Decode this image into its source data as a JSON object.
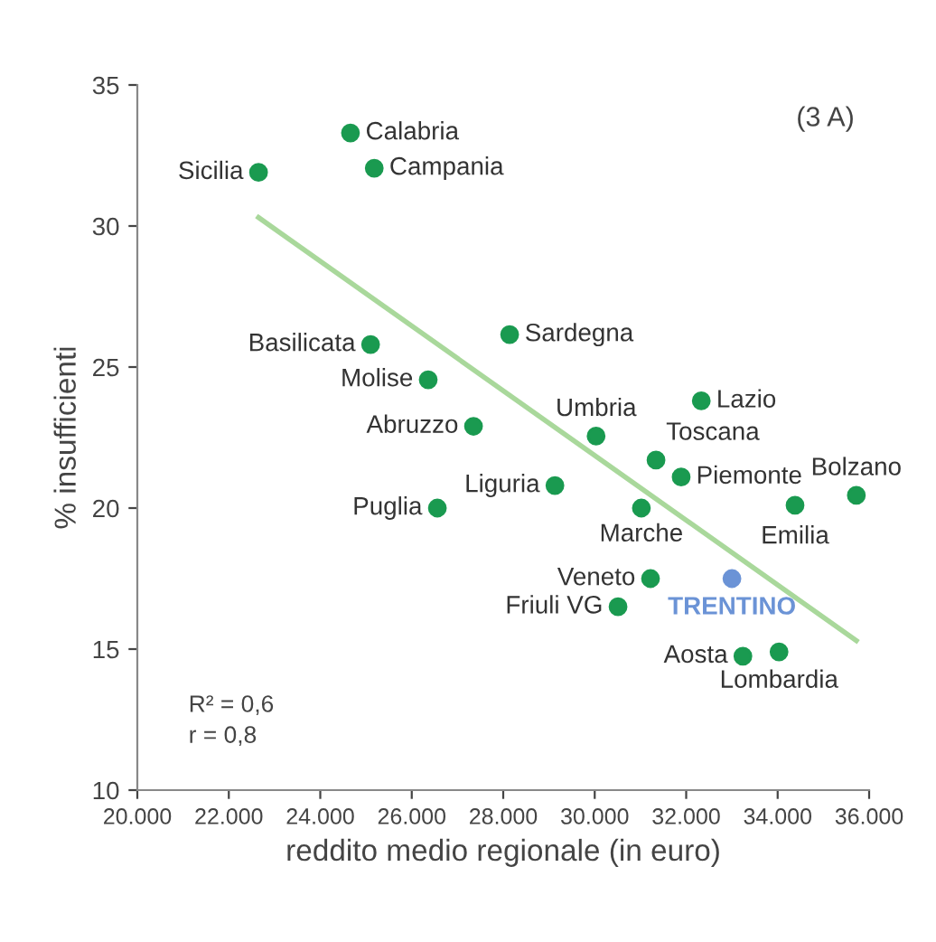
{
  "chart_data": {
    "type": "scatter",
    "xlabel": "reddito medio regionale (in euro)",
    "ylabel": "% insufficienti",
    "xlim": [
      20000,
      36000
    ],
    "ylim": [
      10,
      35
    ],
    "xticks": [
      {
        "value": 20000,
        "label": "20.000"
      },
      {
        "value": 22000,
        "label": "22.000"
      },
      {
        "value": 24000,
        "label": "24.000"
      },
      {
        "value": 26000,
        "label": "26.000"
      },
      {
        "value": 28000,
        "label": "28.000"
      },
      {
        "value": 30000,
        "label": "30.000"
      },
      {
        "value": 32000,
        "label": "32.000"
      },
      {
        "value": 34000,
        "label": "34.000"
      },
      {
        "value": 36000,
        "label": "36.000"
      }
    ],
    "yticks": [
      10,
      15,
      20,
      25,
      30,
      35
    ],
    "grid": false,
    "series": [
      {
        "marker": "circle",
        "color": "#1a9a50",
        "x": [
          22650,
          24660,
          25180,
          25100,
          26360,
          27350,
          28140,
          26560,
          29130,
          30030,
          32330,
          31340,
          31890,
          31020,
          34380,
          35720,
          31220,
          30510,
          33240,
          34030
        ],
        "values": [
          31.9,
          33.3,
          32.05,
          25.8,
          24.55,
          22.9,
          26.15,
          20.0,
          20.8,
          22.55,
          23.8,
          21.7,
          21.1,
          20.0,
          20.1,
          20.45,
          17.5,
          16.5,
          14.75,
          14.9
        ],
        "value_labels": [
          "Sicilia",
          "Calabria",
          "Campania",
          "Basilicata",
          "Molise",
          "Abruzzo",
          "Sardegna",
          "Puglia",
          "Liguria",
          "Umbria",
          "Lazio",
          "Toscana",
          "Piemonte",
          "Marche",
          "Emilia",
          "Bolzano",
          "Veneto",
          "Friuli VG",
          "Aosta",
          "Lombardia"
        ]
      },
      {
        "marker": "circle",
        "color": "#6b93d6",
        "x": [
          33000
        ],
        "values": [
          17.5
        ],
        "value_labels": [
          "TRENTINO"
        ]
      },
      {
        "type": "line",
        "color": "#a9d89b",
        "x": [
          22650,
          35720
        ],
        "values": [
          30.3,
          15.3
        ]
      }
    ],
    "annotations": [
      "(3 A)",
      "R² = 0,6\nr = 0,8"
    ]
  }
}
